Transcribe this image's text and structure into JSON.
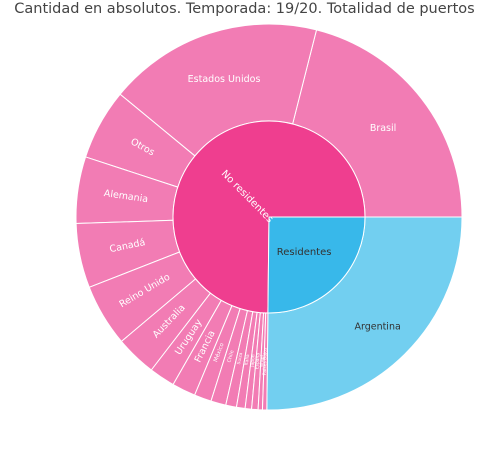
{
  "chart_data": {
    "type": "sunburst",
    "title": "Cantidad en absolutos. Temporada: 19/20. Totalidad de puertos",
    "colors": {
      "no_residentes": "#ef3e8f",
      "no_residentes_children": "#f27cb4",
      "residentes": "#38b8ea",
      "residentes_children": "#72cff0",
      "separator": "#ffffff"
    },
    "groups": [
      {
        "label": "No residentes",
        "children": [
          {
            "label": "Brasil",
            "value": 117
          },
          {
            "label": "Estados Unidos",
            "value": 100
          },
          {
            "label": "Otros",
            "value": 33
          },
          {
            "label": "Alemania",
            "value": 31
          },
          {
            "label": "Canadá",
            "value": 30
          },
          {
            "label": "Reino Unido",
            "value": 29
          },
          {
            "label": "Australia",
            "value": 19
          },
          {
            "label": "Uruguay",
            "value": 12
          },
          {
            "label": "Francia",
            "value": 11
          },
          {
            "label": "México",
            "value": 8
          },
          {
            "label": "Chile",
            "value": 7
          },
          {
            "label": "Suiza",
            "value": 5
          },
          {
            "label": "Italia",
            "value": 4
          },
          {
            "label": "Japón",
            "value": 3
          },
          {
            "label": "España",
            "value": 3
          },
          {
            "label": "Israel",
            "value": 2
          },
          {
            "label": "Países Bajos",
            "value": 2
          }
        ]
      },
      {
        "label": "Residentes",
        "children": [
          {
            "label": "Argentina",
            "value": 140
          }
        ]
      }
    ]
  }
}
